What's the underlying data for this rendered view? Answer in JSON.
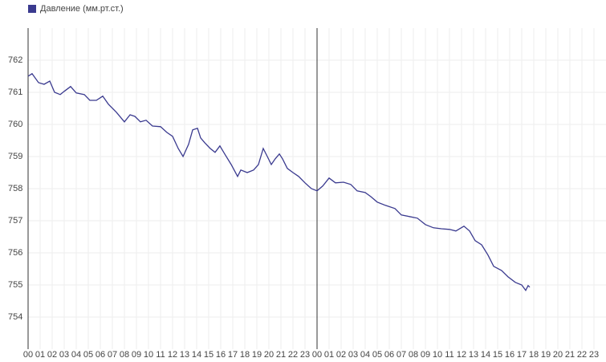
{
  "chart_data": {
    "type": "line",
    "x": [
      0,
      0.33,
      0.87,
      1.33,
      1.8,
      2.2,
      2.67,
      3,
      3.53,
      4,
      4.67,
      5.13,
      5.67,
      6.2,
      6.67,
      7.33,
      8,
      8.47,
      8.87,
      9.33,
      9.8,
      10.33,
      11,
      11.53,
      12,
      12.47,
      12.87,
      13.33,
      13.67,
      14.07,
      14.33,
      14.67,
      15.13,
      15.53,
      15.93,
      16.33,
      16.87,
      17.4,
      17.67,
      18.2,
      18.73,
      19.13,
      19.53,
      19.87,
      20.2,
      20.53,
      20.87,
      21.13,
      21.53,
      22,
      22.47,
      23,
      23.53,
      24,
      24.47,
      25,
      25.53,
      26.2,
      26.8,
      27.33,
      28,
      28.47,
      29,
      29.67,
      30.47,
      31,
      31.67,
      32.33,
      33,
      33.67,
      34.33,
      35,
      35.53,
      36.2,
      36.67,
      37.13,
      37.67,
      38.2,
      38.67,
      39.33,
      39.87,
      40.47,
      41,
      41.33,
      41.53,
      41.67
    ],
    "series": [
      {
        "name": "Давление (мм.рт.ст.)",
        "color": "#3a3a8f",
        "values": [
          761.5,
          761.58,
          761.3,
          761.25,
          761.35,
          761.0,
          760.93,
          761.03,
          761.18,
          760.98,
          760.93,
          760.75,
          760.75,
          760.88,
          760.63,
          760.38,
          760.08,
          760.3,
          760.25,
          760.08,
          760.13,
          759.95,
          759.93,
          759.75,
          759.63,
          759.25,
          759.0,
          759.38,
          759.83,
          759.88,
          759.58,
          759.43,
          759.25,
          759.13,
          759.33,
          759.08,
          758.75,
          758.38,
          758.58,
          758.5,
          758.58,
          758.75,
          759.25,
          759.0,
          758.75,
          758.93,
          759.08,
          758.93,
          758.63,
          758.5,
          758.38,
          758.18,
          758.0,
          757.93,
          758.08,
          758.33,
          758.18,
          758.2,
          758.13,
          757.93,
          757.88,
          757.75,
          757.58,
          757.48,
          757.38,
          757.18,
          757.13,
          757.08,
          756.88,
          756.78,
          756.75,
          756.73,
          756.68,
          756.83,
          756.68,
          756.38,
          756.25,
          755.93,
          755.58,
          755.45,
          755.25,
          755.08,
          755.0,
          754.83,
          754.98,
          754.93
        ]
      }
    ],
    "xlim": [
      0,
      48
    ],
    "xticks": [
      {
        "value": 0,
        "label": "00"
      },
      {
        "value": 1,
        "label": "01"
      },
      {
        "value": 2,
        "label": "02"
      },
      {
        "value": 3,
        "label": "03"
      },
      {
        "value": 4,
        "label": "04"
      },
      {
        "value": 5,
        "label": "05"
      },
      {
        "value": 6,
        "label": "06"
      },
      {
        "value": 7,
        "label": "07"
      },
      {
        "value": 8,
        "label": "08"
      },
      {
        "value": 9,
        "label": "09"
      },
      10,
      11,
      12,
      13,
      14,
      15,
      16,
      17,
      18,
      19,
      20,
      21,
      22,
      23,
      {
        "value": 24,
        "label": "00"
      },
      {
        "value": 25,
        "label": "01"
      },
      {
        "value": 26,
        "label": "02"
      },
      {
        "value": 27,
        "label": "03"
      },
      {
        "value": 28,
        "label": "04"
      },
      {
        "value": 29,
        "label": "05"
      },
      {
        "value": 30,
        "label": "06"
      },
      {
        "value": 31,
        "label": "07"
      },
      {
        "value": 32,
        "label": "08"
      },
      {
        "value": 33,
        "label": "09"
      },
      {
        "value": 34,
        "label": "10"
      },
      {
        "value": 35,
        "label": "11"
      },
      {
        "value": 36,
        "label": "12"
      },
      {
        "value": 37,
        "label": "13"
      },
      {
        "value": 38,
        "label": "14"
      },
      {
        "value": 39,
        "label": "15"
      },
      {
        "value": 40,
        "label": "16"
      },
      {
        "value": 41,
        "label": "17"
      },
      {
        "value": 42,
        "label": "18"
      },
      {
        "value": 43,
        "label": "19"
      },
      {
        "value": 44,
        "label": "20"
      },
      {
        "value": 45,
        "label": "21"
      },
      {
        "value": 46,
        "label": "22"
      },
      {
        "value": 47,
        "label": "23"
      }
    ],
    "ylim": [
      753,
      763
    ],
    "yticks": [
      754,
      755,
      756,
      757,
      758,
      759,
      760,
      761,
      762
    ],
    "grid": true,
    "vlines": [
      24
    ],
    "legend": "top-left"
  }
}
